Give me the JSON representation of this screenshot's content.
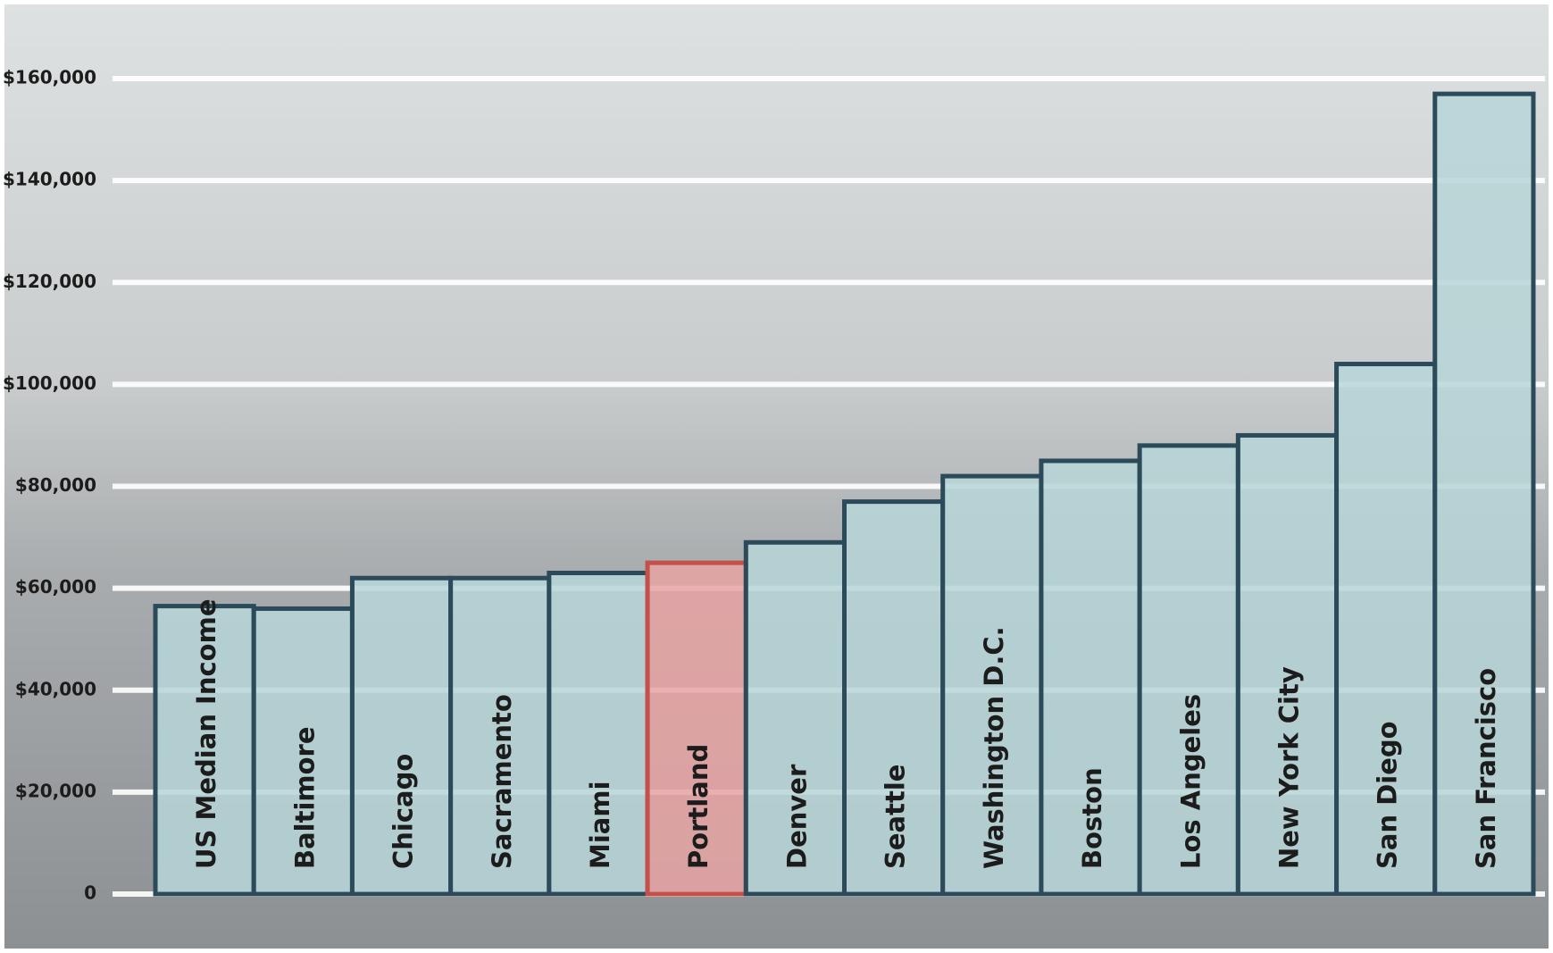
{
  "chart_data": {
    "type": "bar",
    "categories": [
      "US Median Income",
      "Baltimore",
      "Chicago",
      "Sacramento",
      "Miami",
      "Portland",
      "Denver",
      "Seattle",
      "Washington D.C.",
      "Boston",
      "Los Angeles",
      "New York City",
      "San Diego",
      "San Francisco"
    ],
    "values": [
      56500,
      56000,
      62000,
      62000,
      63000,
      65000,
      69000,
      77000,
      82000,
      85000,
      88000,
      90000,
      104000,
      157000
    ],
    "colors": [
      "#b7d6d8",
      "#b7d6d8",
      "#b7d6d8",
      "#b7d6d8",
      "#b7d6d8",
      "#e8a3a3",
      "#b7d6d8",
      "#b7d6d8",
      "#b7d6d8",
      "#b7d6d8",
      "#b7d6d8",
      "#b7d6d8",
      "#b7d6d8",
      "#b7d6d8"
    ],
    "edge_colors": [
      "#2b4a5a",
      "#2b4a5a",
      "#2b4a5a",
      "#2b4a5a",
      "#2b4a5a",
      "#c4504a",
      "#2b4a5a",
      "#2b4a5a",
      "#2b4a5a",
      "#2b4a5a",
      "#2b4a5a",
      "#2b4a5a",
      "#2b4a5a",
      "#2b4a5a"
    ],
    "ylim": [
      0,
      160000
    ],
    "yticks": [
      0,
      {
        "value": 20000,
        "label": "$20,000"
      },
      {
        "value": 40000,
        "label": "$40,000"
      },
      {
        "value": 60000,
        "label": "$60,000"
      },
      {
        "value": 80000,
        "label": "$80,000"
      },
      {
        "value": 100000,
        "label": "$100,000"
      },
      {
        "value": 120000,
        "label": "$120,000"
      },
      {
        "value": 140000,
        "label": "$140,000"
      },
      {
        "value": 160000,
        "label": "$160,000"
      }
    ],
    "grid": true
  }
}
